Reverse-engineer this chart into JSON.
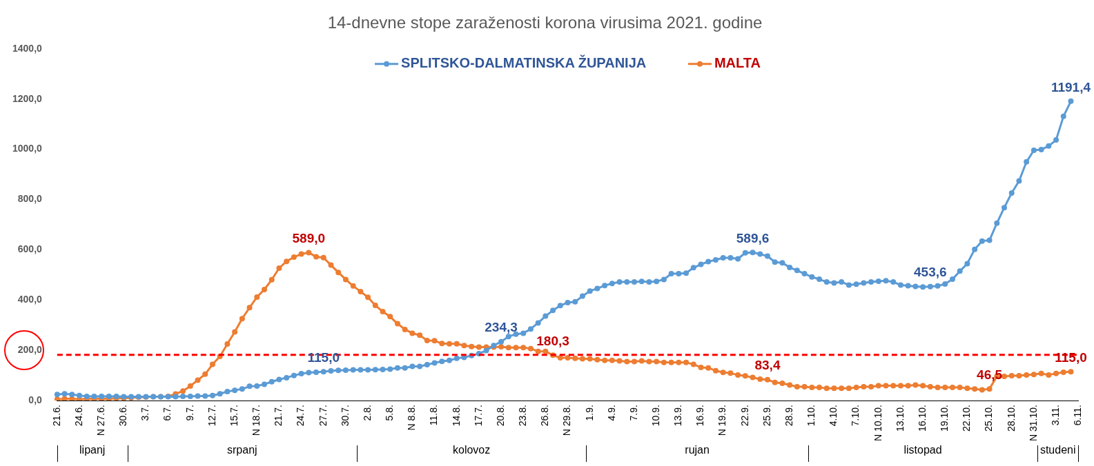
{
  "chart_data": {
    "type": "line",
    "title": "14-dnevne stope zaraženosti korona virusima 2021. godine",
    "categories": [
      "21.6.",
      null,
      null,
      "24.6.",
      null,
      null,
      "N 27.6.",
      null,
      null,
      "30.6.",
      null,
      null,
      "3.7.",
      null,
      null,
      "6.7.",
      null,
      null,
      "9.7.",
      null,
      null,
      "12.7.",
      null,
      null,
      "15.7.",
      null,
      null,
      "N 18.7.",
      null,
      null,
      "21.7.",
      null,
      null,
      "24.7.",
      null,
      null,
      "27.7.",
      null,
      null,
      "30.7.",
      null,
      null,
      "2.8.",
      null,
      null,
      "5.8.",
      null,
      null,
      "N 8.8.",
      null,
      null,
      "11.8.",
      null,
      null,
      "14.8.",
      null,
      null,
      "17.7.",
      null,
      null,
      "20.8.",
      null,
      null,
      "23.8.",
      null,
      null,
      "26.8.",
      null,
      null,
      "N 29.8.",
      null,
      null,
      "1.9.",
      null,
      null,
      "4.9.",
      null,
      null,
      "7.9.",
      null,
      null,
      "10.9.",
      null,
      null,
      "13.9.",
      null,
      null,
      "16.9.",
      null,
      null,
      "N 19.9.",
      null,
      null,
      "22.9.",
      null,
      null,
      "25.9.",
      null,
      null,
      "28.9.",
      null,
      null,
      "1.10.",
      null,
      null,
      "4.10.",
      null,
      null,
      "7.10.",
      null,
      null,
      "N 10.10.",
      null,
      null,
      "13.10.",
      null,
      null,
      "16.10.",
      null,
      null,
      "19.10.",
      null,
      null,
      "22.10.",
      null,
      null,
      "25.10.",
      null,
      null,
      "28.10.",
      null,
      null,
      "N 31.10.",
      null,
      null,
      "3.11.",
      null,
      null,
      "6.11."
    ],
    "series": [
      {
        "name": "SPLITSKO-DALMATINSKA ŽUPANIJA",
        "color": "#5b9bd5",
        "values": [
          24,
          27,
          24,
          20,
          17,
          17,
          17,
          17,
          17,
          15,
          15,
          15,
          15,
          15,
          15,
          15,
          15,
          17,
          17,
          18,
          18,
          20,
          27,
          36,
          41,
          46,
          57,
          58,
          65,
          75,
          84,
          91,
          100,
          107,
          111,
          113,
          115.0,
          118,
          120,
          121,
          122,
          122,
          122,
          123,
          124,
          125,
          130,
          130,
          136,
          136,
          143,
          150,
          156,
          160,
          168,
          172,
          179,
          187,
          199,
          219,
          234.3,
          255,
          264,
          268,
          285,
          309,
          336,
          359,
          378,
          390,
          393,
          416,
          436,
          446,
          458,
          466,
          472,
          472,
          472,
          474,
          472,
          474,
          482,
          505,
          505,
          507,
          529,
          542,
          553,
          560,
          568,
          568,
          564,
          588,
          589.6,
          583,
          575,
          551,
          548,
          530,
          518,
          505,
          492,
          483,
          472,
          468,
          472,
          460,
          463,
          468,
          472,
          475,
          477,
          472,
          460,
          457,
          454,
          452,
          453.6,
          456,
          464,
          483,
          515,
          545,
          602,
          635,
          638,
          706,
          768,
          826,
          874,
          950,
          996,
          999,
          1013,
          1037,
          1131,
          1191.4,
          null
        ],
        "value_labels": [
          null,
          null,
          null,
          null,
          null,
          null,
          null,
          null,
          null,
          null,
          null,
          null,
          null,
          null,
          null,
          null,
          null,
          null,
          null,
          null,
          null,
          null,
          null,
          null,
          null,
          null,
          null,
          null,
          null,
          null,
          null,
          null,
          null,
          null,
          null,
          null,
          "115,0",
          null,
          null,
          null,
          null,
          null,
          null,
          null,
          null,
          null,
          null,
          null,
          null,
          null,
          null,
          null,
          null,
          null,
          null,
          null,
          null,
          null,
          null,
          null,
          "234,3",
          null,
          null,
          null,
          null,
          null,
          null,
          null,
          null,
          null,
          null,
          null,
          null,
          null,
          null,
          null,
          null,
          null,
          null,
          null,
          null,
          null,
          null,
          null,
          null,
          null,
          null,
          null,
          null,
          null,
          null,
          null,
          null,
          null,
          "589,6",
          null,
          null,
          null,
          null,
          null,
          null,
          null,
          null,
          null,
          null,
          null,
          null,
          null,
          null,
          null,
          null,
          null,
          null,
          null,
          null,
          null,
          null,
          null,
          "453,6",
          null,
          null,
          null,
          null,
          null,
          null,
          null,
          null,
          null,
          null,
          null,
          null,
          null,
          null,
          null,
          null,
          null,
          null,
          "1191,4",
          null
        ]
      },
      {
        "name": "MALTA",
        "color": "#ed7d31",
        "values": [
          5,
          7,
          7,
          5,
          7,
          7,
          7,
          7,
          9,
          9,
          11,
          13,
          14,
          15,
          15,
          17,
          26,
          38,
          58,
          81,
          105,
          144,
          176,
          225,
          273,
          326,
          370,
          412,
          442,
          481,
          527,
          554,
          571,
          583,
          589.0,
          572,
          569,
          539,
          510,
          482,
          456,
          434,
          411,
          379,
          354,
          334,
          306,
          283,
          268,
          260,
          239,
          238,
          227,
          226,
          226,
          219,
          215,
          213,
          213,
          213,
          214,
          211,
          211,
          211,
          207,
          196,
          196,
          180.3,
          170,
          170,
          168,
          166,
          166,
          163,
          160,
          160,
          158,
          155,
          155,
          158,
          155,
          155,
          152,
          152,
          152,
          152,
          144,
          132,
          130,
          119,
          112,
          109,
          102,
          98,
          92,
          85,
          83.4,
          72,
          69,
          62,
          55,
          55,
          52,
          52,
          49,
          49,
          49,
          49,
          52,
          55,
          55,
          59,
          59,
          59,
          59,
          59,
          62,
          59,
          55,
          52,
          52,
          52,
          52,
          49,
          46,
          43,
          46.5,
          96,
          96,
          99,
          99,
          102,
          104,
          108,
          102,
          108,
          113,
          115.0,
          null
        ],
        "value_labels": [
          null,
          null,
          null,
          null,
          null,
          null,
          null,
          null,
          null,
          null,
          null,
          null,
          null,
          null,
          null,
          null,
          null,
          null,
          null,
          null,
          null,
          null,
          null,
          null,
          null,
          null,
          null,
          null,
          null,
          null,
          null,
          null,
          null,
          null,
          "589,0",
          null,
          null,
          null,
          null,
          null,
          null,
          null,
          null,
          null,
          null,
          null,
          null,
          null,
          null,
          null,
          null,
          null,
          null,
          null,
          null,
          null,
          null,
          null,
          null,
          null,
          null,
          null,
          null,
          null,
          null,
          null,
          null,
          "180,3",
          null,
          null,
          null,
          null,
          null,
          null,
          null,
          null,
          null,
          null,
          null,
          null,
          null,
          null,
          null,
          null,
          null,
          null,
          null,
          null,
          null,
          null,
          null,
          null,
          null,
          null,
          null,
          null,
          "83,4",
          null,
          null,
          null,
          null,
          null,
          null,
          null,
          null,
          null,
          null,
          null,
          null,
          null,
          null,
          null,
          null,
          null,
          null,
          null,
          null,
          null,
          null,
          null,
          null,
          null,
          null,
          null,
          null,
          null,
          "46,5",
          null,
          null,
          null,
          null,
          null,
          null,
          null,
          null,
          null,
          null,
          "115,0",
          null
        ]
      }
    ],
    "ylim": [
      0,
      1400
    ],
    "yticks": [
      {
        "value": 0,
        "label": "0,0"
      },
      {
        "value": 200,
        "label": "200,0"
      },
      {
        "value": 400,
        "label": "400,0"
      },
      {
        "value": 600,
        "label": "600,0"
      },
      {
        "value": 800,
        "label": "800,0"
      },
      {
        "value": 1000,
        "label": "1000,0"
      },
      {
        "value": 1200,
        "label": "1200,0"
      },
      {
        "value": 1400,
        "label": "1400,0"
      }
    ],
    "ref_lines": [
      {
        "axis": "y",
        "value": 182,
        "color": "#ff0000",
        "line_style": "dashed"
      }
    ],
    "annotations": [
      "lipanj",
      "srpanj",
      "kolovoz",
      "rujan",
      "listopad",
      "studeni"
    ],
    "legend": "top",
    "grid": false,
    "marker": "circle",
    "line_style": "solid"
  }
}
